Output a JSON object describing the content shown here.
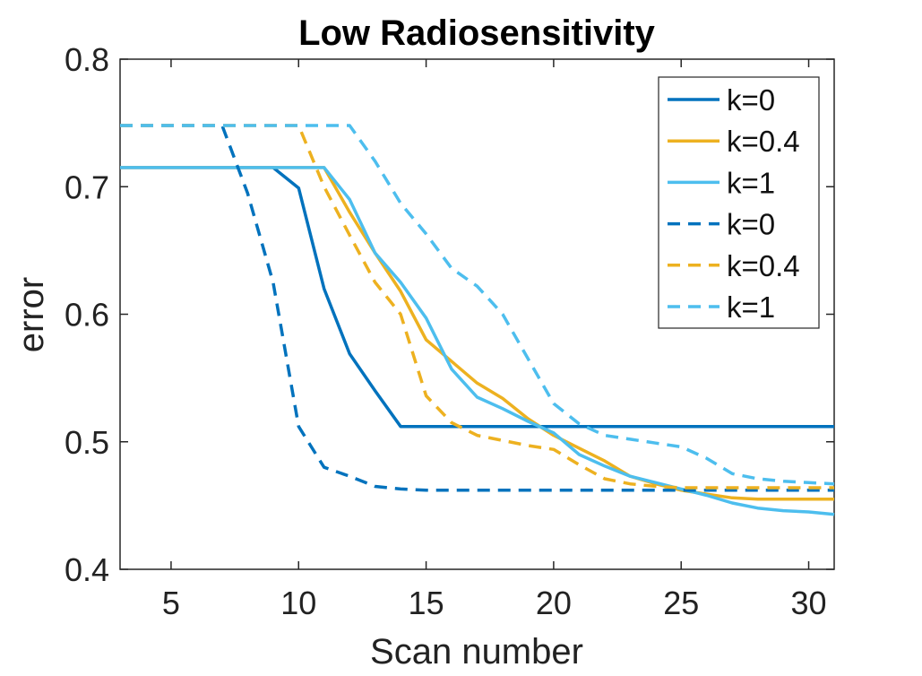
{
  "chart_data": {
    "type": "line",
    "title": "Low Radiosensitivity",
    "xlabel": "Scan number",
    "ylabel": "error",
    "xlim": [
      3,
      31
    ],
    "ylim": [
      0.4,
      0.8
    ],
    "xticks": [
      5,
      10,
      15,
      20,
      25,
      30
    ],
    "yticks": [
      0.4,
      0.5,
      0.6,
      0.7,
      0.8
    ],
    "ytick_labels": [
      "0.4",
      "0.5",
      "0.6",
      "0.7",
      "0.8"
    ],
    "grid": false,
    "legend_position": "top-right",
    "colors": {
      "blue": "#0072BD",
      "yellow": "#EDB120",
      "light_blue": "#4DBEEE"
    },
    "series": [
      {
        "name": "k=0",
        "style": "solid",
        "color": "#0072BD",
        "x": [
          3,
          9,
          10,
          11,
          12,
          13,
          14,
          15,
          20,
          25,
          31
        ],
        "y": [
          0.715,
          0.715,
          0.699,
          0.62,
          0.569,
          0.54,
          0.512,
          0.512,
          0.512,
          0.512,
          0.512
        ]
      },
      {
        "name": "k=0.4",
        "style": "solid",
        "color": "#EDB120",
        "x": [
          3,
          11,
          12,
          13,
          14,
          15,
          16,
          17,
          18,
          19,
          20,
          21,
          22,
          23,
          24,
          25,
          26,
          27,
          28,
          29,
          30,
          31
        ],
        "y": [
          0.715,
          0.715,
          0.68,
          0.648,
          0.618,
          0.58,
          0.563,
          0.546,
          0.534,
          0.518,
          0.505,
          0.495,
          0.485,
          0.473,
          0.467,
          0.462,
          0.459,
          0.456,
          0.455,
          0.455,
          0.455,
          0.455
        ]
      },
      {
        "name": "k=1",
        "style": "solid",
        "color": "#4DBEEE",
        "x": [
          3,
          11,
          12,
          13,
          14,
          15,
          16,
          17,
          18,
          19,
          20,
          21,
          22,
          23,
          24,
          25,
          26,
          27,
          28,
          29,
          30,
          31
        ],
        "y": [
          0.715,
          0.715,
          0.69,
          0.648,
          0.625,
          0.597,
          0.557,
          0.535,
          0.526,
          0.516,
          0.507,
          0.49,
          0.481,
          0.473,
          0.468,
          0.463,
          0.458,
          0.452,
          0.448,
          0.446,
          0.445,
          0.443
        ]
      },
      {
        "name": "k=0",
        "style": "dashed",
        "color": "#0072BD",
        "x": [
          3,
          7,
          8,
          9,
          10,
          11,
          12,
          13,
          14,
          15,
          20,
          25,
          31
        ],
        "y": [
          0.748,
          0.748,
          0.695,
          0.625,
          0.512,
          0.48,
          0.473,
          0.465,
          0.463,
          0.462,
          0.462,
          0.462,
          0.462
        ]
      },
      {
        "name": "k=0.4",
        "style": "dashed",
        "color": "#EDB120",
        "x": [
          3,
          10,
          11,
          12,
          13,
          14,
          15,
          16,
          17,
          18,
          19,
          20,
          21,
          22,
          23,
          24,
          25,
          26,
          27,
          28,
          29,
          30,
          31
        ],
        "y": [
          0.748,
          0.748,
          0.7,
          0.662,
          0.625,
          0.6,
          0.536,
          0.515,
          0.505,
          0.501,
          0.497,
          0.494,
          0.482,
          0.471,
          0.467,
          0.465,
          0.464,
          0.464,
          0.464,
          0.464,
          0.464,
          0.464,
          0.464
        ]
      },
      {
        "name": "k=1",
        "style": "dashed",
        "color": "#4DBEEE",
        "x": [
          3,
          12,
          13,
          14,
          15,
          16,
          17,
          18,
          19,
          20,
          21,
          22,
          23,
          24,
          25,
          26,
          27,
          28,
          29,
          30,
          31
        ],
        "y": [
          0.748,
          0.748,
          0.72,
          0.687,
          0.663,
          0.636,
          0.622,
          0.6,
          0.565,
          0.53,
          0.514,
          0.505,
          0.502,
          0.499,
          0.496,
          0.487,
          0.475,
          0.471,
          0.469,
          0.468,
          0.467
        ]
      }
    ]
  }
}
